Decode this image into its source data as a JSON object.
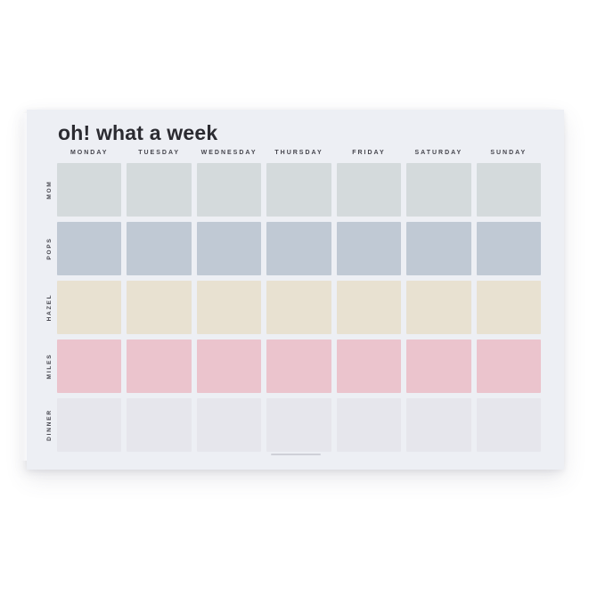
{
  "poster": {
    "title": "oh! what a week",
    "days": [
      "MONDAY",
      "TUESDAY",
      "WEDNESDAY",
      "THURSDAY",
      "FRIDAY",
      "SATURDAY",
      "SUNDAY"
    ],
    "rows": [
      {
        "label": "MOM",
        "color": "#d4dadc"
      },
      {
        "label": "POPS",
        "color": "#c0c9d4"
      },
      {
        "label": "HAZEL",
        "color": "#e8e1d1"
      },
      {
        "label": "MILES",
        "color": "#ebc4cd"
      },
      {
        "label": "DINNER",
        "color": "#e6e6ec"
      }
    ],
    "colors": {
      "page_bg": "#ffffff",
      "poster_bg": "#edeff4",
      "title_text": "#2b2b31",
      "header_text": "#45454d",
      "label_text": "#45454d"
    }
  }
}
